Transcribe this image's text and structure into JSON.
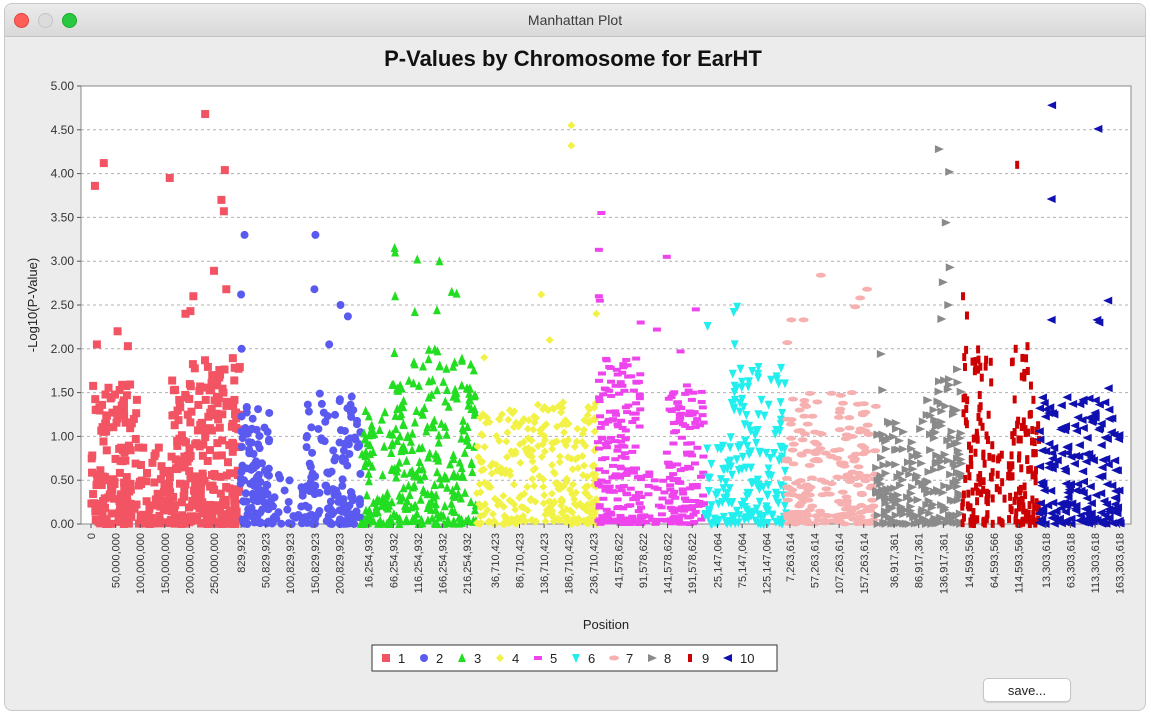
{
  "window": {
    "title": "Manhattan Plot"
  },
  "buttons": {
    "save_label": "save..."
  },
  "chart_data": {
    "type": "scatter",
    "title": "P-Values by Chromosome for EarHT",
    "xlabel": "Position",
    "ylabel": "-Log10(P-Value)",
    "ylim": [
      0,
      5
    ],
    "y_ticks": [
      "0.00",
      "0.50",
      "1.00",
      "1.50",
      "2.00",
      "2.50",
      "3.00",
      "3.50",
      "4.00",
      "4.50",
      "5.00"
    ],
    "grid": true,
    "legend_position": "bottom",
    "chromosomes": [
      {
        "name": "1",
        "color": "#f25463",
        "marker": "square",
        "length": 304000000,
        "ticks": [
          0,
          50000000,
          100000000,
          150000000,
          200000000,
          250000000
        ],
        "tick_labels": [
          "0",
          "50,000,000",
          "100,000,000",
          "150,000,000",
          "200,000,000",
          "250,000,000"
        ],
        "peaks": [
          [
            8000000,
            3.86
          ],
          [
            26000000,
            4.12
          ],
          [
            160000000,
            3.95
          ],
          [
            232000000,
            4.68
          ],
          [
            265000000,
            3.7
          ],
          [
            272000000,
            4.04
          ],
          [
            270000000,
            3.57
          ],
          [
            250000000,
            2.89
          ],
          [
            275000000,
            2.68
          ],
          [
            208000000,
            2.6
          ],
          [
            202000000,
            2.43
          ],
          [
            192000000,
            2.4
          ],
          [
            12000000,
            2.05
          ],
          [
            54000000,
            2.2
          ],
          [
            75000000,
            2.03
          ]
        ],
        "bands": [
          [
            0,
            100000000,
            1.6,
            150
          ],
          [
            100000000,
            160000000,
            0.9,
            50
          ],
          [
            160000000,
            304000000,
            1.9,
            260
          ]
        ]
      },
      {
        "name": "2",
        "color": "#5a5af0",
        "marker": "circle",
        "length": 244000000,
        "ticks": [
          829923,
          50829923,
          100829923,
          150829923,
          200829923
        ],
        "tick_labels": [
          "829,923",
          "50,829,923",
          "100,829,923",
          "150,829,923",
          "200,829,923"
        ],
        "peaks": [
          [
            8000000,
            3.3
          ],
          [
            152000000,
            3.3
          ],
          [
            150000000,
            2.68
          ],
          [
            203000000,
            2.5
          ],
          [
            218000000,
            2.37
          ],
          [
            1000000,
            2.62
          ],
          [
            2000000,
            2.0
          ],
          [
            180000000,
            2.05
          ]
        ],
        "bands": [
          [
            0,
            60000000,
            1.4,
            100
          ],
          [
            60000000,
            130000000,
            0.6,
            30
          ],
          [
            130000000,
            244000000,
            1.5,
            140
          ]
        ]
      },
      {
        "name": "3",
        "color": "#22dd22",
        "marker": "triangle-up",
        "length": 236000000,
        "ticks": [
          16254932,
          66254932,
          116254932,
          166254932,
          216254932
        ],
        "tick_labels": [
          "16,254,932",
          "66,254,932",
          "116,254,932",
          "166,254,932",
          "216,254,932"
        ],
        "peaks": [
          [
            69000000,
            3.15
          ],
          [
            70000000,
            3.1
          ],
          [
            115000000,
            3.02
          ],
          [
            160000000,
            3.0
          ],
          [
            185000000,
            2.65
          ],
          [
            195000000,
            2.63
          ],
          [
            70000000,
            2.6
          ],
          [
            110000000,
            2.42
          ],
          [
            155000000,
            2.44
          ]
        ],
        "bands": [
          [
            0,
            60000000,
            1.3,
            70
          ],
          [
            60000000,
            236000000,
            2.0,
            240
          ]
        ]
      },
      {
        "name": "4",
        "color": "#f2f246",
        "marker": "diamond",
        "length": 246000000,
        "ticks": [
          36710423,
          86710423,
          136710423,
          186710423,
          236710423
        ],
        "tick_labels": [
          "36,710,423",
          "86,710,423",
          "136,710,423",
          "186,710,423",
          "236,710,423"
        ],
        "peaks": [
          [
            192000000,
            4.55
          ],
          [
            192000000,
            4.32
          ],
          [
            131000000,
            2.62
          ],
          [
            243000000,
            2.4
          ],
          [
            148000000,
            2.1
          ],
          [
            15000000,
            1.9
          ]
        ],
        "bands": [
          [
            0,
            100000000,
            1.3,
            110
          ],
          [
            100000000,
            246000000,
            1.4,
            200
          ]
        ]
      },
      {
        "name": "5",
        "color": "#ee44ee",
        "marker": "dash",
        "length": 218000000,
        "ticks": [
          41578622,
          91578622,
          141578622,
          191578622
        ],
        "tick_labels": [
          "41,578,622",
          "91,578,622",
          "141,578,622",
          "191,578,622"
        ],
        "peaks": [
          [
            7000000,
            3.55
          ],
          [
            2000000,
            3.13
          ],
          [
            140000000,
            3.05
          ],
          [
            2000000,
            2.6
          ],
          [
            4000000,
            2.55
          ],
          [
            87000000,
            2.3
          ],
          [
            120000000,
            2.22
          ],
          [
            199000000,
            2.45
          ],
          [
            168000000,
            1.97
          ]
        ],
        "bands": [
          [
            0,
            90000000,
            1.9,
            190
          ],
          [
            90000000,
            140000000,
            0.6,
            25
          ],
          [
            140000000,
            218000000,
            1.6,
            130
          ]
        ]
      },
      {
        "name": "6",
        "color": "#22eeee",
        "marker": "triangle-down",
        "length": 165000000,
        "ticks": [
          25147064,
          75147064,
          125147064
        ],
        "tick_labels": [
          "25,147,064",
          "75,147,064",
          "125,147,064"
        ],
        "peaks": [
          [
            65000000,
            2.48
          ],
          [
            58000000,
            2.42
          ],
          [
            5000000,
            2.26
          ],
          [
            60000000,
            2.05
          ]
        ],
        "bands": [
          [
            0,
            45000000,
            0.9,
            40
          ],
          [
            45000000,
            165000000,
            1.8,
            150
          ]
        ]
      },
      {
        "name": "7",
        "color": "#f7b0b0",
        "marker": "ellipse",
        "length": 182000000,
        "ticks": [
          7263614,
          57263614,
          107263614,
          157263614
        ],
        "tick_labels": [
          "7,263,614",
          "57,263,614",
          "107,263,614",
          "157,263,614"
        ],
        "peaks": [
          [
            70000000,
            2.84
          ],
          [
            164000000,
            2.68
          ],
          [
            150000000,
            2.58
          ],
          [
            140000000,
            2.48
          ],
          [
            10000000,
            2.33
          ],
          [
            2000000,
            2.07
          ],
          [
            35000000,
            2.33
          ]
        ],
        "bands": [
          [
            0,
            182000000,
            1.5,
            220
          ]
        ]
      },
      {
        "name": "8",
        "color": "#8a8a8a",
        "marker": "triangle-right",
        "length": 175000000,
        "ticks": [
          36917361,
          86917361,
          136917361
        ],
        "tick_labels": [
          "36,917,361",
          "86,917,361",
          "136,917,361"
        ],
        "peaks": [
          [
            128000000,
            4.28
          ],
          [
            149000000,
            4.02
          ],
          [
            142000000,
            3.44
          ],
          [
            150000000,
            2.93
          ],
          [
            136000000,
            2.76
          ],
          [
            133000000,
            2.34
          ],
          [
            147000000,
            2.5
          ],
          [
            10000000,
            1.94
          ],
          [
            13000000,
            1.53
          ]
        ],
        "bands": [
          [
            0,
            100000000,
            1.2,
            120
          ],
          [
            100000000,
            175000000,
            1.8,
            120
          ]
        ]
      },
      {
        "name": "9",
        "color": "#cc0000",
        "marker": "bar",
        "length": 157000000,
        "ticks": [
          14593566,
          64593566,
          114593566
        ],
        "tick_labels": [
          "14,593,566",
          "64,593,566",
          "114,593,566"
        ],
        "peaks": [
          [
            112000000,
            4.1
          ],
          [
            2000000,
            2.6
          ],
          [
            10000000,
            2.38
          ],
          [
            109000000,
            2.0
          ],
          [
            133000000,
            2.03
          ],
          [
            140000000,
            1.58
          ]
        ],
        "bands": [
          [
            0,
            60000000,
            2.0,
            90
          ],
          [
            60000000,
            100000000,
            0.9,
            25
          ],
          [
            100000000,
            157000000,
            1.9,
            90
          ]
        ]
      },
      {
        "name": "10",
        "color": "#1010b0",
        "marker": "triangle-left",
        "length": 166000000,
        "ticks": [
          13303618,
          63303618,
          113303618,
          163303618
        ],
        "tick_labels": [
          "13,303,618",
          "63,303,618",
          "113,303,618",
          "163,303,618"
        ],
        "peaks": [
          [
            26000000,
            4.78
          ],
          [
            25000000,
            3.71
          ],
          [
            120000000,
            4.51
          ],
          [
            25000000,
            2.33
          ],
          [
            118000000,
            2.33
          ],
          [
            122000000,
            2.3
          ],
          [
            140000000,
            2.55
          ],
          [
            141000000,
            1.55
          ]
        ],
        "bands": [
          [
            0,
            166000000,
            1.45,
            200
          ]
        ]
      }
    ]
  }
}
